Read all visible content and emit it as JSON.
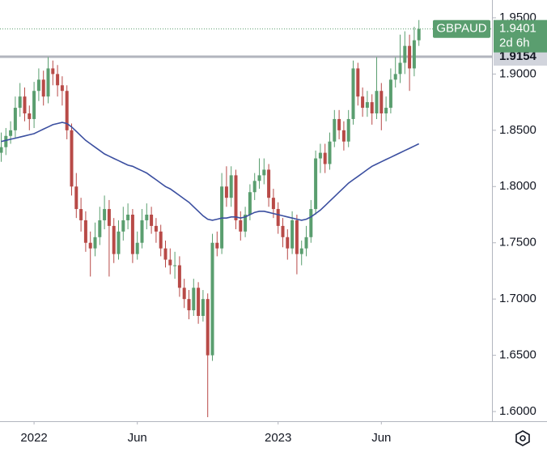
{
  "chart_data": {
    "type": "candlestick",
    "symbol": "GBPAUD",
    "last_price": {
      "value": 1.9401,
      "label": "1.9401"
    },
    "countdown": "2d 6h",
    "level": {
      "value": 1.9154,
      "label": "1.9154"
    },
    "up_color": "#5a9e6f",
    "down_color": "#b84a47",
    "categories": [
      null,
      null,
      null,
      null,
      null,
      null,
      null,
      "2022",
      null,
      null,
      null,
      null,
      null,
      null,
      null,
      null,
      null,
      null,
      null,
      null,
      null,
      null,
      null,
      null,
      null,
      null,
      null,
      null,
      null,
      "Jun",
      null,
      null,
      null,
      null,
      null,
      null,
      null,
      null,
      null,
      null,
      null,
      null,
      null,
      null,
      null,
      null,
      null,
      null,
      null,
      null,
      null,
      null,
      null,
      null,
      null,
      null,
      null,
      null,
      null,
      "2023",
      null,
      null,
      null,
      null,
      null,
      null,
      null,
      null,
      null,
      null,
      null,
      null,
      null,
      null,
      null,
      null,
      null,
      null,
      null,
      null,
      null,
      "Jun",
      null,
      null,
      null,
      null,
      null,
      null,
      null,
      null
    ],
    "open": [
      1.83,
      1.835,
      1.845,
      1.85,
      1.87,
      1.88,
      1.865,
      1.86,
      1.885,
      1.895,
      1.88,
      1.905,
      1.9,
      1.89,
      1.885,
      1.85,
      1.8,
      1.78,
      1.77,
      1.75,
      1.745,
      1.755,
      1.77,
      1.78,
      1.765,
      1.74,
      1.76,
      1.77,
      1.775,
      1.74,
      1.75,
      1.77,
      1.775,
      1.765,
      1.76,
      1.745,
      1.735,
      1.73,
      1.73,
      1.71,
      1.7,
      1.69,
      1.71,
      1.685,
      1.7,
      1.65,
      1.75,
      1.745,
      1.8,
      1.79,
      1.81,
      1.77,
      1.76,
      1.775,
      1.795,
      1.805,
      1.81,
      1.815,
      1.79,
      1.78,
      1.765,
      1.755,
      1.745,
      1.77,
      1.74,
      1.745,
      1.755,
      1.78,
      1.825,
      1.83,
      1.82,
      1.84,
      1.86,
      1.85,
      1.84,
      1.86,
      1.905,
      1.88,
      1.87,
      1.875,
      1.865,
      1.885,
      1.865,
      1.87,
      1.895,
      1.9,
      1.91,
      1.925,
      1.905,
      1.93
    ],
    "high": [
      1.848,
      1.852,
      1.858,
      1.88,
      1.892,
      1.888,
      1.872,
      1.893,
      1.905,
      1.903,
      1.915,
      1.912,
      1.908,
      1.898,
      1.89,
      1.856,
      1.812,
      1.79,
      1.778,
      1.76,
      1.768,
      1.782,
      1.792,
      1.788,
      1.772,
      1.77,
      1.782,
      1.785,
      1.78,
      1.76,
      1.78,
      1.785,
      1.782,
      1.772,
      1.766,
      1.752,
      1.745,
      1.742,
      1.738,
      1.718,
      1.708,
      1.718,
      1.715,
      1.708,
      1.705,
      1.758,
      1.76,
      1.812,
      1.818,
      1.818,
      1.815,
      1.778,
      1.782,
      1.802,
      1.812,
      1.825,
      1.825,
      1.82,
      1.798,
      1.786,
      1.772,
      1.762,
      1.778,
      1.775,
      1.752,
      1.765,
      1.788,
      1.832,
      1.838,
      1.838,
      1.848,
      1.868,
      1.868,
      1.858,
      1.868,
      1.912,
      1.91,
      1.888,
      1.885,
      1.882,
      1.915,
      1.892,
      1.88,
      1.905,
      1.915,
      1.935,
      1.938,
      1.935,
      1.942,
      1.948
    ],
    "low": [
      1.822,
      1.828,
      1.838,
      1.843,
      1.862,
      1.858,
      1.85,
      1.852,
      1.876,
      1.872,
      1.874,
      1.89,
      1.88,
      1.872,
      1.842,
      1.792,
      1.772,
      1.76,
      1.742,
      1.72,
      1.738,
      1.748,
      1.762,
      1.72,
      1.732,
      1.735,
      1.752,
      1.762,
      1.732,
      1.735,
      1.745,
      1.762,
      1.758,
      1.75,
      1.738,
      1.728,
      1.722,
      1.718,
      1.702,
      1.692,
      1.682,
      1.685,
      1.678,
      1.68,
      1.595,
      1.645,
      1.738,
      1.74,
      1.782,
      1.782,
      1.762,
      1.752,
      1.755,
      1.77,
      1.788,
      1.798,
      1.802,
      1.782,
      1.772,
      1.758,
      1.746,
      1.735,
      1.74,
      1.722,
      1.73,
      1.738,
      1.75,
      1.775,
      1.812,
      1.812,
      1.815,
      1.835,
      1.842,
      1.832,
      1.835,
      1.855,
      1.872,
      1.862,
      1.862,
      1.855,
      1.86,
      1.85,
      1.858,
      1.865,
      1.888,
      1.892,
      1.9,
      1.885,
      1.898,
      1.925
    ],
    "close": [
      1.835,
      1.845,
      1.85,
      1.87,
      1.88,
      1.865,
      1.86,
      1.885,
      1.895,
      1.88,
      1.905,
      1.9,
      1.89,
      1.885,
      1.85,
      1.8,
      1.78,
      1.77,
      1.75,
      1.745,
      1.755,
      1.77,
      1.78,
      1.765,
      1.74,
      1.76,
      1.77,
      1.775,
      1.74,
      1.75,
      1.77,
      1.775,
      1.765,
      1.76,
      1.745,
      1.735,
      1.73,
      1.73,
      1.71,
      1.7,
      1.69,
      1.71,
      1.685,
      1.7,
      1.65,
      1.75,
      1.745,
      1.8,
      1.79,
      1.81,
      1.77,
      1.76,
      1.775,
      1.795,
      1.805,
      1.81,
      1.815,
      1.79,
      1.78,
      1.765,
      1.755,
      1.745,
      1.77,
      1.74,
      1.745,
      1.755,
      1.78,
      1.825,
      1.83,
      1.82,
      1.84,
      1.86,
      1.85,
      1.84,
      1.86,
      1.905,
      1.88,
      1.87,
      1.875,
      1.865,
      1.885,
      1.865,
      1.87,
      1.895,
      1.9,
      1.91,
      1.925,
      1.905,
      1.93,
      1.9401
    ],
    "overlay": {
      "type": "line",
      "color": "#3b4fa0",
      "values": [
        1.84,
        1.841,
        1.842,
        1.843,
        1.844,
        1.845,
        1.846,
        1.847,
        1.849,
        1.851,
        1.853,
        1.855,
        1.856,
        1.857,
        1.856,
        1.853,
        1.849,
        1.845,
        1.841,
        1.838,
        1.835,
        1.832,
        1.829,
        1.827,
        1.825,
        1.823,
        1.821,
        1.819,
        1.818,
        1.816,
        1.814,
        1.812,
        1.809,
        1.806,
        1.803,
        1.8,
        1.798,
        1.795,
        1.792,
        1.789,
        1.786,
        1.782,
        1.778,
        1.774,
        1.771,
        1.77,
        1.771,
        1.772,
        1.772,
        1.773,
        1.773,
        1.772,
        1.773,
        1.775,
        1.777,
        1.778,
        1.778,
        1.777,
        1.776,
        1.775,
        1.774,
        1.773,
        1.772,
        1.771,
        1.77,
        1.771,
        1.773,
        1.776,
        1.779,
        1.783,
        1.787,
        1.791,
        1.795,
        1.799,
        1.803,
        1.806,
        1.809,
        1.812,
        1.815,
        1.818,
        1.82,
        1.822,
        1.824,
        1.826,
        1.828,
        1.83,
        1.832,
        1.834,
        1.836,
        1.838
      ]
    },
    "ylim": [
      1.5914,
      1.9658
    ],
    "yticks": [
      {
        "value": 1.6,
        "label": "1.6000"
      },
      {
        "value": 1.65,
        "label": "1.6500"
      },
      {
        "value": 1.7,
        "label": "1.7000"
      },
      {
        "value": 1.75,
        "label": "1.7500"
      },
      {
        "value": 1.8,
        "label": "1.8000"
      },
      {
        "value": 1.85,
        "label": "1.8500"
      },
      {
        "value": 1.9,
        "label": "1.9000"
      },
      {
        "value": 1.95,
        "label": "1.9500"
      }
    ]
  }
}
